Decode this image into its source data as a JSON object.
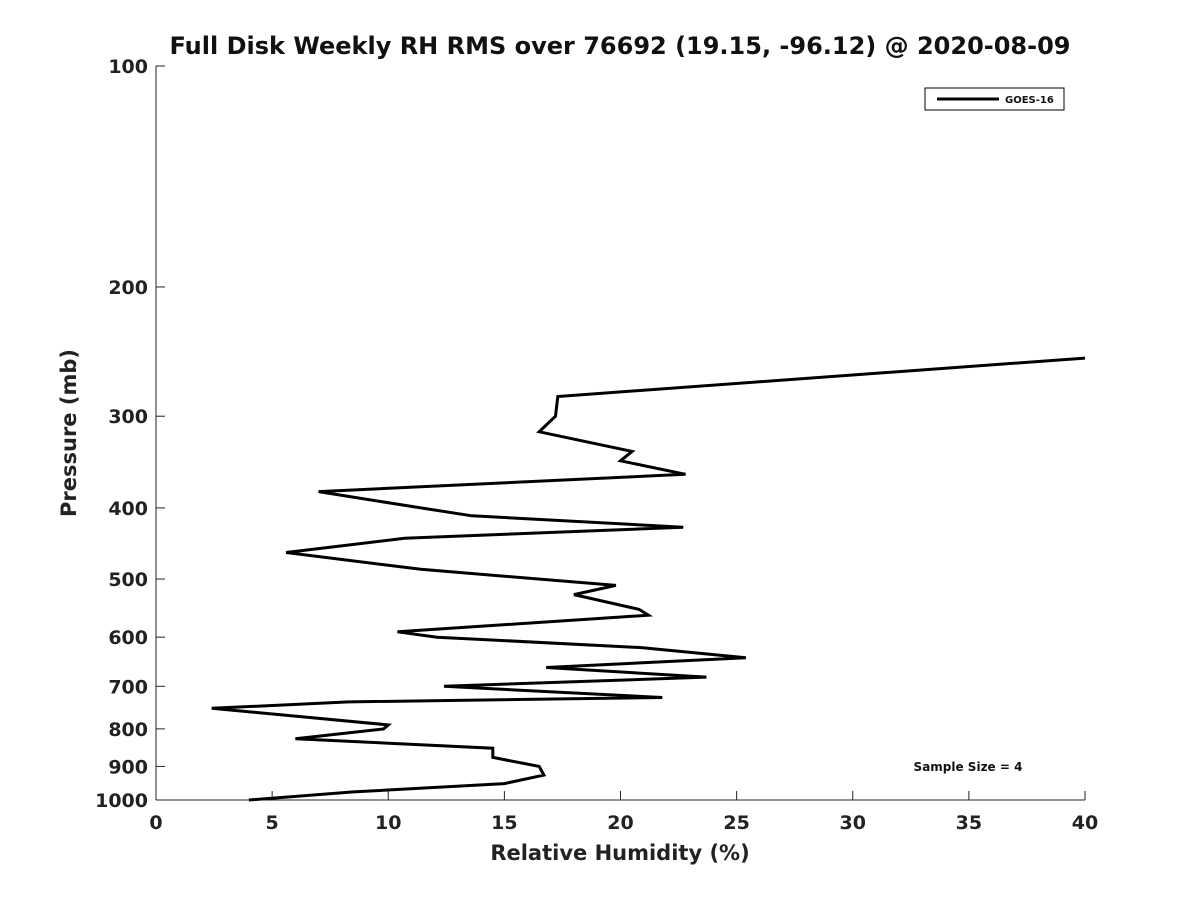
{
  "chart_data": {
    "type": "line",
    "title": "Full Disk Weekly RH RMS over 76692 (19.15, -96.12) @ 2020-08-09",
    "xlabel": "Relative Humidity (%)",
    "ylabel": "Pressure (mb)",
    "xlim": [
      0,
      40
    ],
    "ylim": [
      1000,
      100
    ],
    "y_scale": "log",
    "x_ticks": [
      0,
      5,
      10,
      15,
      20,
      25,
      30,
      35,
      40
    ],
    "y_ticks": [
      100,
      200,
      300,
      400,
      500,
      600,
      700,
      800,
      900,
      1000
    ],
    "grid": false,
    "legend_position": "top-right",
    "colors": {
      "series": "#000000",
      "axis": "#222222"
    },
    "series": [
      {
        "name": "GOES-16",
        "points": [
          [
            4.0,
            1000
          ],
          [
            8.5,
            975
          ],
          [
            15.0,
            950
          ],
          [
            16.7,
            925
          ],
          [
            16.5,
            900
          ],
          [
            14.5,
            875
          ],
          [
            14.5,
            850
          ],
          [
            6.0,
            825
          ],
          [
            9.8,
            800
          ],
          [
            10.0,
            790
          ],
          [
            2.4,
            750
          ],
          [
            8.3,
            735
          ],
          [
            21.8,
            725
          ],
          [
            12.4,
            700
          ],
          [
            23.7,
            680
          ],
          [
            16.8,
            660
          ],
          [
            25.4,
            640
          ],
          [
            20.9,
            620
          ],
          [
            12.1,
            600
          ],
          [
            10.4,
            590
          ],
          [
            21.2,
            560
          ],
          [
            20.8,
            550
          ],
          [
            18.0,
            525
          ],
          [
            19.8,
            510
          ],
          [
            11.4,
            485
          ],
          [
            5.6,
            460
          ],
          [
            10.7,
            440
          ],
          [
            22.7,
            425
          ],
          [
            13.6,
            410
          ],
          [
            11.4,
            400
          ],
          [
            7.0,
            380
          ],
          [
            22.8,
            360
          ],
          [
            20.0,
            345
          ],
          [
            20.5,
            335
          ],
          [
            16.5,
            315
          ],
          [
            17.2,
            300
          ],
          [
            17.3,
            282
          ],
          [
            40.0,
            250
          ]
        ]
      }
    ],
    "annotations": [
      "Sample Size = 4"
    ]
  }
}
